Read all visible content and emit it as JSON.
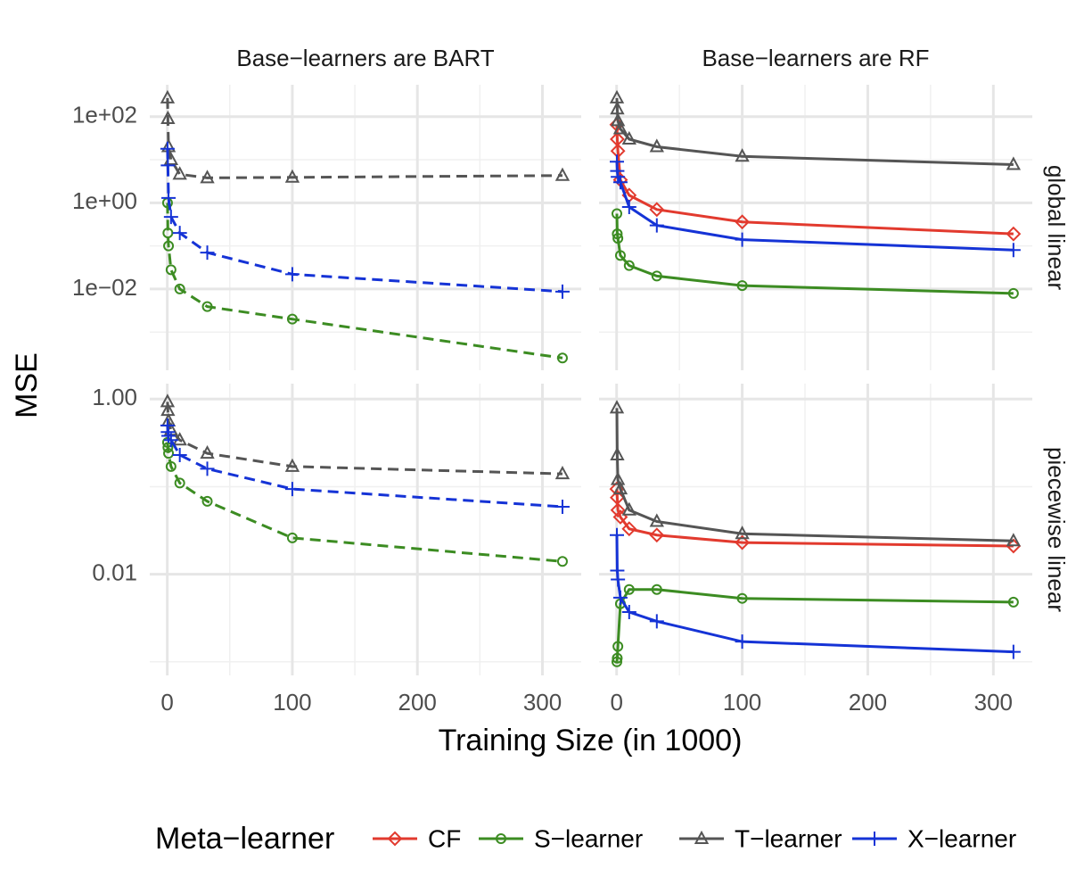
{
  "x_label": "Training Size (in 1000)",
  "y_label": "MSE",
  "columns": [
    "Base−learners are BART",
    "Base−learners are RF"
  ],
  "rows": [
    "global linear",
    "piecewise linear"
  ],
  "legend_title": "Meta−learner",
  "chart_data": [
    {
      "type": "line",
      "column": 0,
      "row": 0,
      "log_y": true,
      "grid": true,
      "linestyle": "dashed",
      "x": [
        0.2,
        0.5,
        1,
        3,
        10,
        32,
        100,
        316
      ],
      "xlim": [
        -14,
        331
      ],
      "xticks": [
        0,
        100,
        200,
        300
      ],
      "xminor": [
        50,
        150,
        250
      ],
      "ylim": [
        0.00013,
        550
      ],
      "yticks": [
        {
          "value": 100,
          "label": "1e+02"
        },
        {
          "value": 1,
          "label": "1e+00"
        },
        {
          "value": 0.01,
          "label": "1e−02"
        }
      ],
      "yminor": [
        10,
        0.1,
        0.001
      ],
      "series": [
        {
          "name": "S−learner",
          "color": "#3c8c22",
          "marker": "circle",
          "values": [
            1.0,
            0.2,
            0.1,
            0.028,
            0.01,
            0.0039,
            0.002,
            0.00025
          ]
        },
        {
          "name": "T−learner",
          "color": "#555555",
          "marker": "triangle",
          "values": [
            270,
            90,
            20,
            10,
            4.6,
            3.8,
            3.9,
            4.3
          ]
        },
        {
          "name": "X−learner",
          "color": "#1533d6",
          "marker": "plus",
          "values": [
            18,
            7.4,
            1.3,
            0.47,
            0.2,
            0.07,
            0.022,
            0.0087
          ]
        }
      ]
    },
    {
      "type": "line",
      "column": 1,
      "row": 0,
      "log_y": true,
      "grid": true,
      "linestyle": "solid",
      "x": [
        0.2,
        0.5,
        1,
        3,
        10,
        32,
        100,
        316
      ],
      "xlim": [
        -14,
        331
      ],
      "xticks": [
        0,
        100,
        200,
        300
      ],
      "xminor": [
        50,
        150,
        250
      ],
      "ylim": [
        0.00013,
        550
      ],
      "yticks": [
        100,
        1,
        0.01
      ],
      "yminor": [
        10,
        0.1,
        0.001
      ],
      "series": [
        {
          "name": "CF",
          "color": "#e23a2e",
          "marker": "diamond",
          "values": [
            65,
            30,
            16,
            3.4,
            1.5,
            0.7,
            0.36,
            0.19
          ]
        },
        {
          "name": "S−learner",
          "color": "#3c8c22",
          "marker": "circle",
          "values": [
            0.56,
            0.19,
            0.15,
            0.06,
            0.035,
            0.02,
            0.012,
            0.0079
          ]
        },
        {
          "name": "T−learner",
          "color": "#555555",
          "marker": "triangle",
          "values": [
            270,
            150,
            80,
            52,
            30,
            20,
            12,
            7.7
          ]
        },
        {
          "name": "X−learner",
          "color": "#1533d6",
          "marker": "plus",
          "values": [
            9,
            5.5,
            4,
            3,
            0.8,
            0.3,
            0.14,
            0.08
          ]
        }
      ]
    },
    {
      "type": "line",
      "column": 0,
      "row": 1,
      "log_y": true,
      "grid": true,
      "linestyle": "dashed",
      "x": [
        0.2,
        0.5,
        1,
        3,
        10,
        32,
        100,
        316
      ],
      "xlim": [
        -14,
        331
      ],
      "xticks": [
        0,
        100,
        200,
        300
      ],
      "xminor": [
        50,
        150,
        250
      ],
      "ylim": [
        0.0007,
        1.5
      ],
      "yticks": [
        {
          "value": 1,
          "label": "1.00"
        },
        0.01
      ],
      "yminor": [
        0.1,
        0.001
      ],
      "series": [
        {
          "name": "S−learner",
          "color": "#3c8c22",
          "marker": "circle",
          "values": [
            0.32,
            0.28,
            0.24,
            0.17,
            0.11,
            0.068,
            0.026,
            0.014
          ]
        },
        {
          "name": "T−learner",
          "color": "#555555",
          "marker": "triangle",
          "values": [
            0.93,
            0.74,
            0.56,
            0.44,
            0.34,
            0.24,
            0.17,
            0.14
          ]
        },
        {
          "name": "X−learner",
          "color": "#1533d6",
          "marker": "plus",
          "values": [
            0.5,
            0.42,
            0.38,
            0.34,
            0.23,
            0.16,
            0.094,
            0.059
          ]
        }
      ]
    },
    {
      "type": "line",
      "column": 1,
      "row": 1,
      "log_y": true,
      "grid": true,
      "linestyle": "solid",
      "x": [
        0.2,
        0.5,
        1,
        3,
        10,
        32,
        100,
        316
      ],
      "xlim": [
        -14,
        331
      ],
      "xticks": [
        0,
        100,
        200,
        300
      ],
      "xminor": [
        50,
        150,
        250
      ],
      "ylim": [
        0.0007,
        1.5
      ],
      "yticks": [
        1,
        0.01
      ],
      "yminor": [
        0.1,
        0.001
      ],
      "series": [
        {
          "name": "CF",
          "color": "#e23a2e",
          "marker": "diamond",
          "values": [
            0.094,
            0.075,
            0.054,
            0.045,
            0.033,
            0.028,
            0.023,
            0.021
          ]
        },
        {
          "name": "S−learner",
          "color": "#3c8c22",
          "marker": "circle",
          "values": [
            0.001,
            0.0011,
            0.0015,
            0.0046,
            0.0067,
            0.0067,
            0.0053,
            0.0048
          ]
        },
        {
          "name": "T−learner",
          "color": "#555555",
          "marker": "triangle",
          "values": [
            0.79,
            0.23,
            0.12,
            0.094,
            0.054,
            0.04,
            0.029,
            0.024
          ]
        },
        {
          "name": "X−learner",
          "color": "#1533d6",
          "marker": "plus",
          "values": [
            0.028,
            0.011,
            0.0087,
            0.0054,
            0.0037,
            0.0029,
            0.0017,
            0.0013
          ]
        }
      ]
    }
  ]
}
